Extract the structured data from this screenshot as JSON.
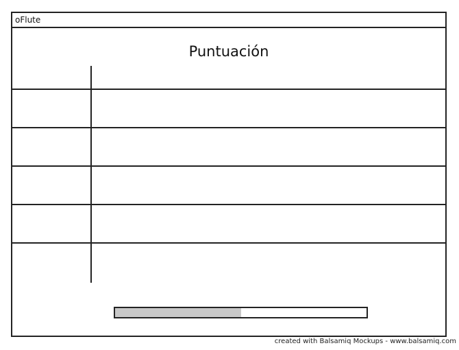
{
  "window": {
    "title": "oFlute"
  },
  "main": {
    "heading": "Puntuación",
    "progress": 0.5
  },
  "footer": {
    "credit": "created with Balsamiq Mockups - www.balsamiq.com"
  }
}
